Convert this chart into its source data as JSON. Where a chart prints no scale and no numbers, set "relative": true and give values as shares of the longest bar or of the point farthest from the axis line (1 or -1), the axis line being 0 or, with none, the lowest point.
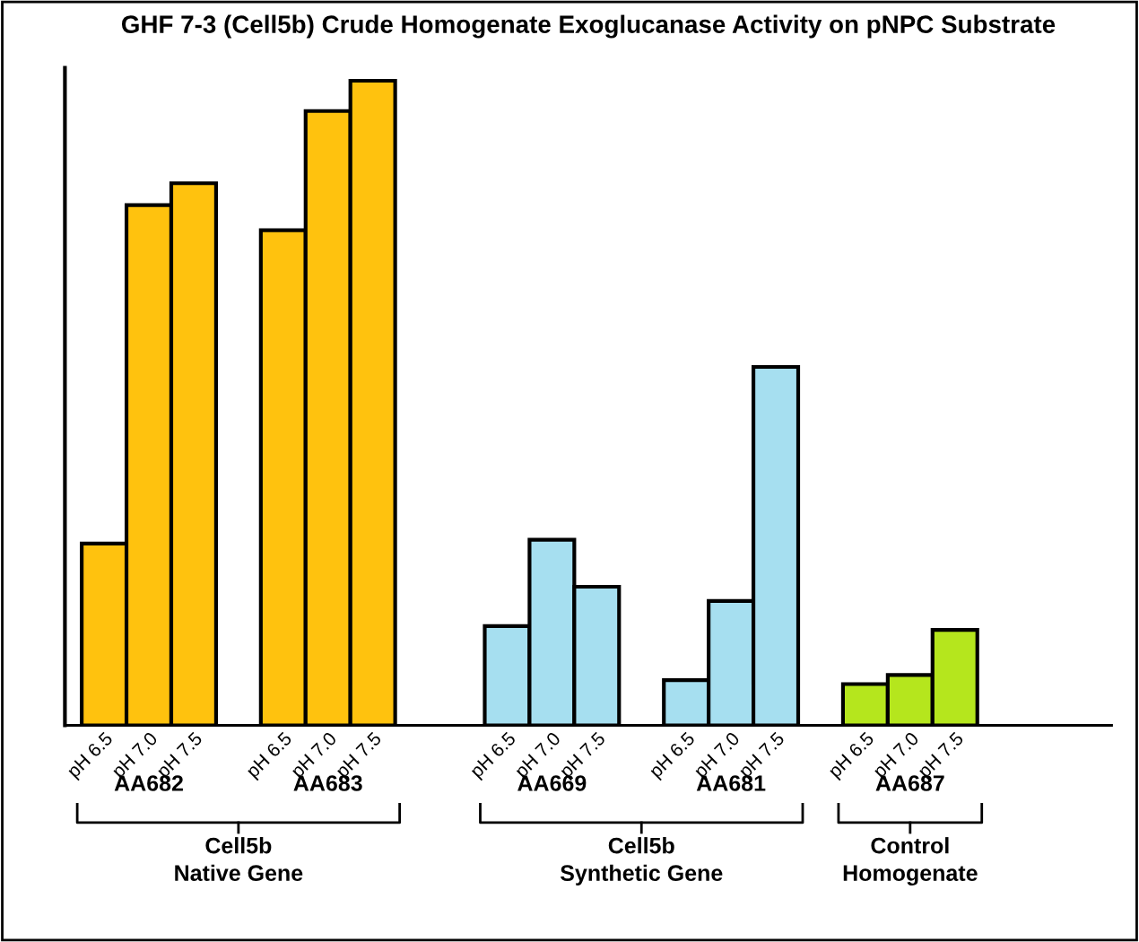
{
  "chart_data": {
    "type": "bar",
    "title": "GHF 7-3 (Cell5b) Crude Homogenate Exoglucanase Activity on pNPC Substrate",
    "relative": true,
    "categories": [
      "pH 6.5",
      "pH 7.0",
      "pH 7.5",
      null,
      "pH 6.5",
      "pH 7.0",
      "pH 7.5",
      null,
      null,
      "pH 6.5",
      "pH 7.0",
      "pH 7.5",
      null,
      "pH 6.5",
      "pH 7.0",
      "pH 7.5",
      null,
      "pH 6.5",
      "pH 7.0",
      "pH 7.5"
    ],
    "values": [
      0.282,
      0.807,
      0.841,
      null,
      0.768,
      0.953,
      1,
      null,
      null,
      0.154,
      0.288,
      0.215,
      null,
      0.07,
      0.193,
      0.556,
      null,
      0.064,
      0.078,
      0.148
    ],
    "colors": [
      "#ffc20e",
      "#ffc20e",
      "#ffc20e",
      null,
      "#ffc20e",
      "#ffc20e",
      "#ffc20e",
      null,
      null,
      "#a6dff0",
      "#a6dff0",
      "#a6dff0",
      null,
      "#a6dff0",
      "#a6dff0",
      "#a6dff0",
      null,
      "#b5e61d",
      "#b5e61d",
      "#b5e61d"
    ],
    "annotations": [
      "AA682",
      "AA683",
      "AA669",
      "AA681",
      "AA687",
      "Cell5b\nNative Gene",
      "Cell5b\nSynthetic Gene",
      "Control\nHomogenate"
    ],
    "grid": false
  }
}
